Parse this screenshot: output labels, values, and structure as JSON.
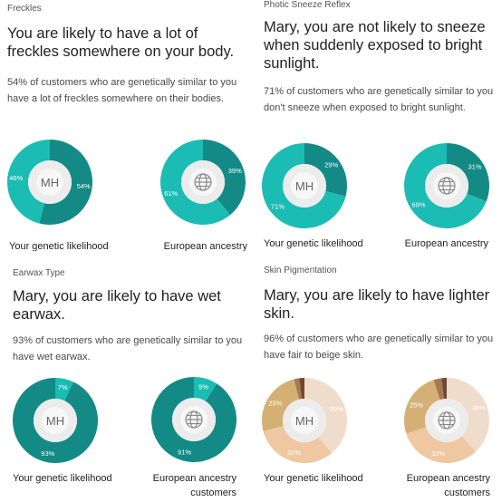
{
  "panels": [
    {
      "category": "Freckles",
      "headline": "You are likely to have a lot of freckles somewhere on your body.",
      "description": "54% of customers who are genetically similar to you have a lot of freckles somewhere on their bodies.",
      "chart_data": {
        "type": "pie",
        "series": [
          {
            "label": "Your genetic likelihood",
            "center": "MH",
            "slices": [
              {
                "value": 54,
                "label": "54%",
                "color": "#138a86"
              },
              {
                "value": 46,
                "label": "46%",
                "color": "#1bbcb4"
              }
            ]
          },
          {
            "label": "European ancestry customers",
            "center_icon": "globe-icon",
            "slices": [
              {
                "value": 39,
                "label": "39%",
                "color": "#138a86"
              },
              {
                "value": 61,
                "label": "61%",
                "color": "#1bbcb4"
              }
            ]
          }
        ]
      }
    },
    {
      "category": "Photic Sneeze Reflex",
      "headline": "Mary, you are not likely to sneeze when suddenly exposed to bright sunlight.",
      "description": "71% of customers who are genetically similar to you don't sneeze when exposed to bright sunlight.",
      "chart_data": {
        "type": "pie",
        "series": [
          {
            "label": "Your genetic likelihood",
            "center": "MH",
            "slices": [
              {
                "value": 29,
                "label": "29%",
                "color": "#138a86"
              },
              {
                "value": 71,
                "label": "71%",
                "color": "#1bbcb4"
              }
            ]
          },
          {
            "label": "European ancestry customers",
            "center_icon": "globe-icon",
            "slices": [
              {
                "value": 31,
                "label": "31%",
                "color": "#138a86"
              },
              {
                "value": 69,
                "label": "69%",
                "color": "#1bbcb4"
              }
            ]
          }
        ]
      }
    },
    {
      "category": "Earwax Type",
      "headline": "Mary, you are likely to have wet earwax.",
      "description": "93% of customers who are genetically similar to you have wet earwax.",
      "chart_data": {
        "type": "pie",
        "series": [
          {
            "label": "Your genetic likelihood",
            "center": "MH",
            "slices": [
              {
                "value": 7,
                "label": "7%",
                "color": "#1bbcb4"
              },
              {
                "value": 93,
                "label": "93%",
                "color": "#138a86"
              }
            ]
          },
          {
            "label": "European ancestry customers",
            "center_icon": "globe-icon",
            "slices": [
              {
                "value": 9,
                "label": "9%",
                "color": "#1bbcb4"
              },
              {
                "value": 91,
                "label": "91%",
                "color": "#138a86"
              }
            ]
          }
        ]
      }
    },
    {
      "category": "Skin Pigmentation",
      "headline": "Mary, you are likely to have lighter skin.",
      "description": "96% of customers who are genetically similar to you have fair to beige skin.",
      "chart_data": {
        "type": "pie",
        "series": [
          {
            "label": "Your genetic likelihood",
            "center": "MH",
            "slices": [
              {
                "value": 39,
                "label": "39%",
                "color": "#f0dccb"
              },
              {
                "value": 32,
                "label": "32%",
                "color": "#efc7a1"
              },
              {
                "value": 25,
                "label": "25%",
                "color": "#d4b074"
              },
              {
                "value": 2,
                "label": "",
                "color": "#a77a52"
              },
              {
                "value": 2,
                "label": "",
                "color": "#6e4a34"
              }
            ]
          },
          {
            "label": "European ancestry customers",
            "center_icon": "globe-icon",
            "slices": [
              {
                "value": 38,
                "label": "38%",
                "color": "#f0dccb"
              },
              {
                "value": 32,
                "label": "32%",
                "color": "#efc7a1"
              },
              {
                "value": 25,
                "label": "25%",
                "color": "#d4b074"
              },
              {
                "value": 3,
                "label": "",
                "color": "#a77a52"
              },
              {
                "value": 2,
                "label": "",
                "color": "#6e4a34"
              }
            ]
          }
        ]
      }
    }
  ]
}
